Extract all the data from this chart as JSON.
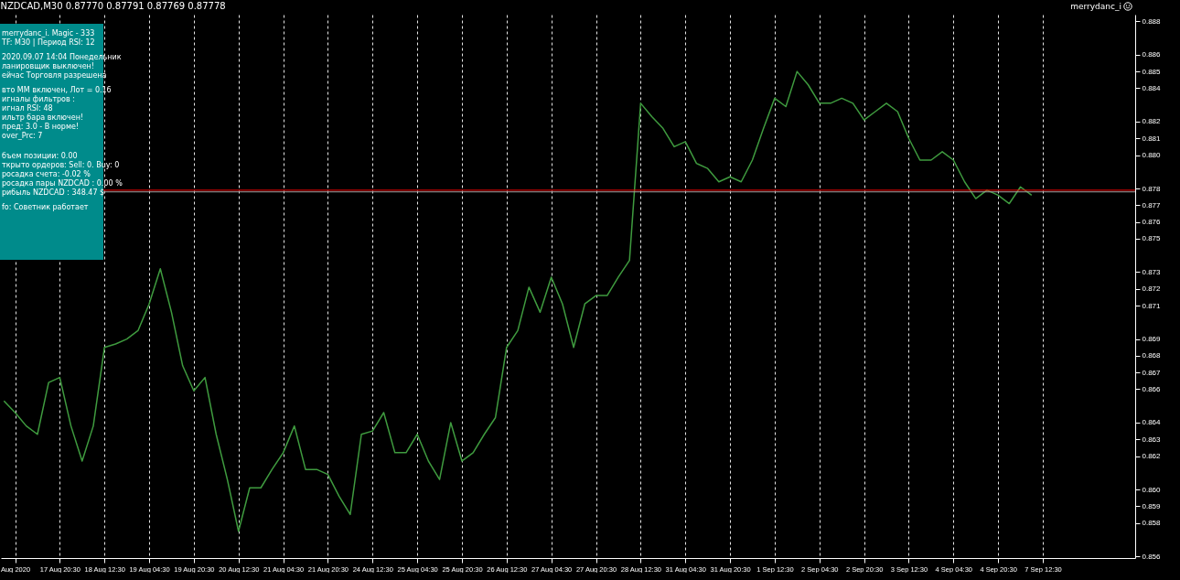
{
  "chart_data": {
    "type": "line",
    "title": "NZDCAD,M30 0.87770 0.87791 0.87769 0.87778",
    "categories": [
      null,
      "Aug 2020",
      null,
      null,
      null,
      "17 Aug 20:30",
      null,
      null,
      null,
      "18 Aug 12:30",
      null,
      null,
      null,
      "19 Aug 04:30",
      null,
      null,
      null,
      "19 Aug 20:30",
      null,
      null,
      null,
      "20 Aug 12:30",
      null,
      null,
      null,
      "21 Aug 04:30",
      null,
      null,
      null,
      "21 Aug 20:30",
      null,
      null,
      null,
      "24 Aug 12:30",
      null,
      null,
      null,
      "25 Aug 04:30",
      null,
      null,
      null,
      "25 Aug 20:30",
      null,
      null,
      null,
      "26 Aug 12:30",
      null,
      null,
      null,
      "27 Aug 04:30",
      null,
      null,
      null,
      "27 Aug 20:30",
      null,
      null,
      null,
      "28 Aug 12:30",
      null,
      null,
      null,
      "31 Aug 04:30",
      null,
      null,
      null,
      "31 Aug 20:30",
      null,
      null,
      null,
      "1 Sep 12:30",
      null,
      null,
      null,
      "2 Sep 04:30",
      null,
      null,
      null,
      "2 Sep 20:30",
      null,
      null,
      null,
      "3 Sep 12:30",
      null,
      null,
      null,
      "4 Sep 04:30",
      null,
      null,
      null,
      "4 Sep 20:30",
      null,
      null,
      null,
      "7 Sep 12:30",
      null,
      null,
      null,
      null,
      null,
      null,
      null,
      null
    ],
    "series": [
      {
        "color": "#3f9b3f",
        "values": [
          0.8653,
          0.8646,
          0.8638,
          0.8633,
          0.8664,
          0.8667,
          0.8638,
          0.8617,
          0.8638,
          0.8685,
          0.8687,
          0.869,
          0.8695,
          0.8711,
          0.8732,
          0.8706,
          0.8674,
          0.8659,
          0.8667,
          0.8633,
          0.8606,
          0.8575,
          0.8601,
          0.8601,
          0.8612,
          0.8622,
          0.8638,
          0.8612,
          0.8612,
          0.8609,
          0.8596,
          0.8585,
          0.8633,
          0.8635,
          0.8646,
          0.8622,
          0.8622,
          0.8633,
          0.8617,
          0.8606,
          0.864,
          0.8617,
          0.8622,
          0.8633,
          0.8643,
          0.8685,
          0.8695,
          0.8721,
          0.8706,
          0.8727,
          0.8711,
          0.8685,
          0.8711,
          0.8716,
          0.8716,
          0.8727,
          0.8737,
          0.8831,
          0.8823,
          0.8816,
          0.8805,
          0.8808,
          0.8795,
          0.8792,
          0.8784,
          0.8787,
          0.8784,
          0.8797,
          0.8816,
          0.8834,
          0.8829,
          0.885,
          0.8842,
          0.8831,
          0.8831,
          0.8834,
          0.8831,
          0.8821,
          0.8826,
          0.8831,
          0.8826,
          0.881,
          0.8797,
          0.8797,
          0.8802,
          0.8797,
          0.8784,
          0.8774,
          0.8779,
          0.8776,
          0.8771,
          0.8781,
          0.8776,
          null,
          null,
          null,
          null,
          null,
          null,
          null,
          null,
          null
        ]
      }
    ],
    "ylim": [
      0.8559,
      0.8884
    ],
    "yticks": [
      0.856,
      0.858,
      0.859,
      {
        "value": 0.86,
        "label": "0.860"
      },
      0.862,
      0.863,
      0.864,
      0.866,
      0.867,
      0.868,
      0.869,
      0.871,
      0.872,
      0.873,
      0.875,
      0.876,
      0.877,
      0.878,
      {
        "value": 0.88,
        "label": "0.880"
      },
      0.881,
      0.882,
      0.884,
      0.885,
      0.886,
      0.888
    ],
    "ref_lines": [
      {
        "axis": "y",
        "value": 0.8779,
        "color": "#ff0000"
      },
      {
        "axis": "y",
        "value": 0.8778,
        "color": "#a0a0a0"
      }
    ],
    "grid": "x",
    "marker": "none",
    "line_style": "solid",
    "annotations": [
      "merrydanc_i",
      "merrydanc_i. Magic - 333",
      "TF: M30  |  Период RSI: 12",
      "2020.09.07 14:04 Понедельник",
      "ланировщик выключен!",
      "ейчас Торговля разрешена",
      "вто MM включен,  Лот = 0.16",
      "игналы фильтров :",
      "игнал RSI: 48",
      "ильтр бара включен!",
      "пред: 3.0 - В норме!",
      "over_Prc: 7",
      "бъем позиции: 0.00",
      "ткрыто ордеров: Sell: 0.    Buy: 0",
      "росадка счета: -0.02 %",
      "росадка пары NZDCAD : 0.00 %",
      "рибыль NZDCAD : 348.47 $",
      "fo: Советник работает"
    ]
  }
}
